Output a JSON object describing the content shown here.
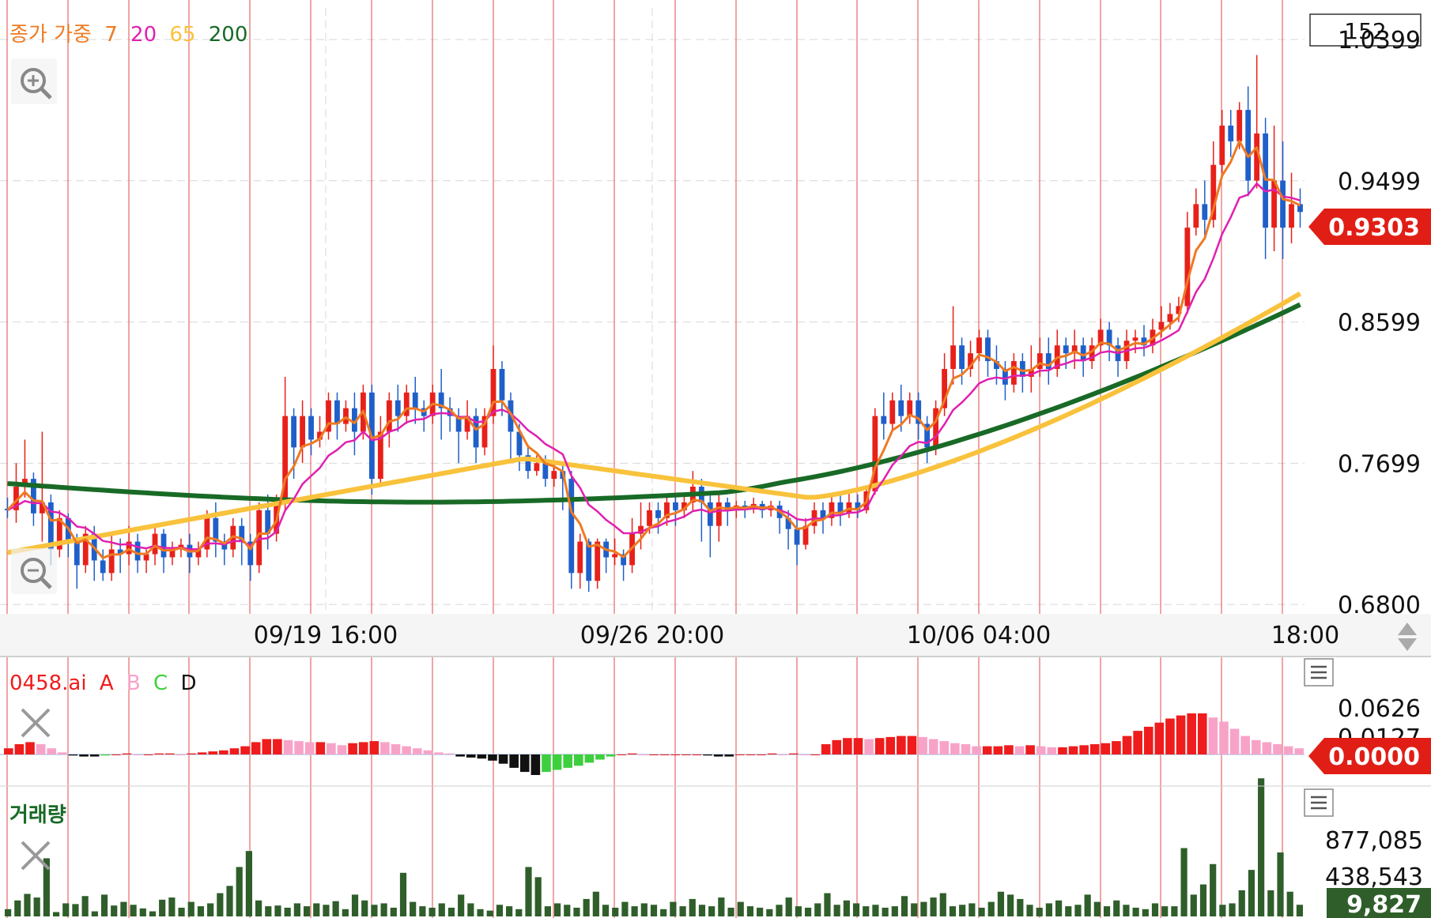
{
  "colors": {
    "up": "#e8201a",
    "down": "#1f5fc9",
    "ma7": "#ee7a22",
    "ma20": "#e020b0",
    "ma65": "#f9c23c",
    "ma200": "#186a26",
    "price_badge": "#e01e16",
    "volume_badge": "#2f5e2a",
    "period_line": "#e25050",
    "grid": "#d7d7d7",
    "vol_bar": "#2f5e2a",
    "osc_a": "#ee1c1c",
    "osc_b": "#f7a3c8",
    "osc_c": "#3ecf3e",
    "osc_d": "#111111"
  },
  "main_panel": {
    "legend": {
      "prefix": "종가 가중",
      "p7": "7",
      "p20": "20",
      "p65": "65",
      "p200": "200"
    },
    "count_box": "152",
    "current_price": "0.9303",
    "zoom_in_icon": "zoom-in-icon",
    "zoom_out_icon": "zoom-out-icon"
  },
  "time_axis": {
    "labels": [
      "09/19 16:00",
      "09/26 20:00",
      "10/06 04:00",
      "18:00"
    ]
  },
  "oscillator_panel": {
    "name": "0458.ai",
    "legend": [
      "A",
      "B",
      "C",
      "D"
    ],
    "ticks": [
      "0.0626",
      "0.0127"
    ],
    "current": "0.0000",
    "menu_icon": "menu-icon",
    "close_icon": "close-icon"
  },
  "volume_panel": {
    "title": "거래량",
    "ticks": [
      "877,085",
      "438,543"
    ],
    "current": "9,827",
    "menu_icon": "menu-icon",
    "close_icon": "close-icon"
  },
  "chart_data": {
    "type": "candlestick",
    "y_axis": {
      "ticks": [
        1.0399,
        0.9499,
        0.8599,
        0.7699,
        0.68
      ],
      "range": [
        0.675,
        1.06
      ]
    },
    "x_axis": {
      "labels": [
        "09/19 16:00",
        "09/26 20:00",
        "10/06 04:00",
        "18:00"
      ]
    },
    "candles": [
      [
        0.741,
        0.74,
        0.735,
        0.748
      ],
      [
        0.74,
        0.755,
        0.732,
        0.77
      ],
      [
        0.755,
        0.76,
        0.748,
        0.785
      ],
      [
        0.76,
        0.738,
        0.73,
        0.764
      ],
      [
        0.738,
        0.745,
        0.72,
        0.79
      ],
      [
        0.745,
        0.715,
        0.705,
        0.75
      ],
      [
        0.715,
        0.735,
        0.71,
        0.74
      ],
      [
        0.735,
        0.72,
        0.71,
        0.738
      ],
      [
        0.72,
        0.705,
        0.69,
        0.725
      ],
      [
        0.705,
        0.725,
        0.7,
        0.73
      ],
      [
        0.725,
        0.708,
        0.695,
        0.73
      ],
      [
        0.708,
        0.7,
        0.695,
        0.715
      ],
      [
        0.7,
        0.715,
        0.695,
        0.725
      ],
      [
        0.715,
        0.712,
        0.7,
        0.722
      ],
      [
        0.712,
        0.72,
        0.705,
        0.73
      ],
      [
        0.72,
        0.708,
        0.7,
        0.725
      ],
      [
        0.708,
        0.712,
        0.7,
        0.715
      ],
      [
        0.712,
        0.725,
        0.705,
        0.73
      ],
      [
        0.725,
        0.71,
        0.7,
        0.728
      ],
      [
        0.71,
        0.715,
        0.705,
        0.72
      ],
      [
        0.715,
        0.718,
        0.71,
        0.722
      ],
      [
        0.718,
        0.71,
        0.7,
        0.725
      ],
      [
        0.71,
        0.715,
        0.705,
        0.72
      ],
      [
        0.715,
        0.735,
        0.71,
        0.74
      ],
      [
        0.735,
        0.72,
        0.71,
        0.745
      ],
      [
        0.72,
        0.715,
        0.705,
        0.725
      ],
      [
        0.715,
        0.73,
        0.71,
        0.735
      ],
      [
        0.73,
        0.72,
        0.705,
        0.735
      ],
      [
        0.72,
        0.705,
        0.695,
        0.725
      ],
      [
        0.705,
        0.74,
        0.7,
        0.745
      ],
      [
        0.74,
        0.725,
        0.715,
        0.75
      ],
      [
        0.725,
        0.745,
        0.72,
        0.75
      ],
      [
        0.745,
        0.8,
        0.74,
        0.825
      ],
      [
        0.8,
        0.78,
        0.76,
        0.805
      ],
      [
        0.78,
        0.8,
        0.77,
        0.81
      ],
      [
        0.8,
        0.785,
        0.775,
        0.805
      ],
      [
        0.785,
        0.79,
        0.78,
        0.8
      ],
      [
        0.79,
        0.81,
        0.785,
        0.815
      ],
      [
        0.81,
        0.795,
        0.785,
        0.815
      ],
      [
        0.795,
        0.805,
        0.79,
        0.81
      ],
      [
        0.805,
        0.79,
        0.775,
        0.815
      ],
      [
        0.79,
        0.815,
        0.785,
        0.82
      ],
      [
        0.815,
        0.76,
        0.75,
        0.82
      ],
      [
        0.76,
        0.79,
        0.755,
        0.8
      ],
      [
        0.79,
        0.81,
        0.78,
        0.815
      ],
      [
        0.81,
        0.8,
        0.79,
        0.82
      ],
      [
        0.8,
        0.815,
        0.795,
        0.82
      ],
      [
        0.815,
        0.805,
        0.795,
        0.825
      ],
      [
        0.805,
        0.8,
        0.79,
        0.81
      ],
      [
        0.8,
        0.815,
        0.795,
        0.82
      ],
      [
        0.815,
        0.805,
        0.785,
        0.83
      ],
      [
        0.805,
        0.8,
        0.79,
        0.812
      ],
      [
        0.8,
        0.79,
        0.77,
        0.805
      ],
      [
        0.79,
        0.8,
        0.785,
        0.81
      ],
      [
        0.8,
        0.78,
        0.77,
        0.805
      ],
      [
        0.78,
        0.8,
        0.775,
        0.805
      ],
      [
        0.8,
        0.83,
        0.795,
        0.845
      ],
      [
        0.83,
        0.81,
        0.8,
        0.835
      ],
      [
        0.81,
        0.79,
        0.77,
        0.815
      ],
      [
        0.79,
        0.775,
        0.765,
        0.795
      ],
      [
        0.775,
        0.765,
        0.76,
        0.78
      ],
      [
        0.765,
        0.77,
        0.762,
        0.775
      ],
      [
        0.77,
        0.76,
        0.755,
        0.775
      ],
      [
        0.76,
        0.765,
        0.755,
        0.77
      ],
      [
        0.765,
        0.76,
        0.74,
        0.77
      ],
      [
        0.76,
        0.7,
        0.69,
        0.765
      ],
      [
        0.7,
        0.72,
        0.69,
        0.725
      ],
      [
        0.72,
        0.695,
        0.688,
        0.722
      ],
      [
        0.695,
        0.72,
        0.69,
        0.722
      ],
      [
        0.72,
        0.71,
        0.7,
        0.722
      ],
      [
        0.71,
        0.712,
        0.705,
        0.722
      ],
      [
        0.712,
        0.705,
        0.695,
        0.715
      ],
      [
        0.705,
        0.725,
        0.7,
        0.735
      ],
      [
        0.725,
        0.73,
        0.715,
        0.745
      ],
      [
        0.73,
        0.74,
        0.725,
        0.745
      ],
      [
        0.74,
        0.735,
        0.725,
        0.745
      ],
      [
        0.735,
        0.745,
        0.73,
        0.748
      ],
      [
        0.745,
        0.74,
        0.73,
        0.75
      ],
      [
        0.74,
        0.745,
        0.735,
        0.75
      ],
      [
        0.745,
        0.755,
        0.74,
        0.765
      ],
      [
        0.755,
        0.745,
        0.72,
        0.76
      ],
      [
        0.745,
        0.73,
        0.71,
        0.75
      ],
      [
        0.73,
        0.745,
        0.72,
        0.75
      ],
      [
        0.745,
        0.74,
        0.73,
        0.748
      ],
      [
        0.74,
        0.743,
        0.735,
        0.746
      ],
      [
        0.743,
        0.741,
        0.735,
        0.746
      ],
      [
        0.741,
        0.744,
        0.738,
        0.748
      ],
      [
        0.744,
        0.74,
        0.735,
        0.746
      ],
      [
        0.74,
        0.743,
        0.736,
        0.746
      ],
      [
        0.743,
        0.735,
        0.725,
        0.746
      ],
      [
        0.735,
        0.728,
        0.715,
        0.74
      ],
      [
        0.728,
        0.718,
        0.705,
        0.735
      ],
      [
        0.718,
        0.73,
        0.715,
        0.735
      ],
      [
        0.73,
        0.74,
        0.725,
        0.745
      ],
      [
        0.74,
        0.735,
        0.725,
        0.745
      ],
      [
        0.735,
        0.745,
        0.73,
        0.75
      ],
      [
        0.745,
        0.738,
        0.73,
        0.75
      ],
      [
        0.738,
        0.745,
        0.735,
        0.752
      ],
      [
        0.745,
        0.74,
        0.735,
        0.75
      ],
      [
        0.74,
        0.752,
        0.738,
        0.755
      ],
      [
        0.752,
        0.8,
        0.75,
        0.805
      ],
      [
        0.8,
        0.795,
        0.785,
        0.815
      ],
      [
        0.795,
        0.81,
        0.79,
        0.815
      ],
      [
        0.81,
        0.8,
        0.79,
        0.82
      ],
      [
        0.8,
        0.81,
        0.795,
        0.815
      ],
      [
        0.81,
        0.795,
        0.785,
        0.815
      ],
      [
        0.795,
        0.78,
        0.77,
        0.8
      ],
      [
        0.78,
        0.805,
        0.775,
        0.81
      ],
      [
        0.805,
        0.83,
        0.8,
        0.84
      ],
      [
        0.83,
        0.845,
        0.82,
        0.87
      ],
      [
        0.845,
        0.83,
        0.82,
        0.85
      ],
      [
        0.83,
        0.84,
        0.825,
        0.848
      ],
      [
        0.84,
        0.85,
        0.835,
        0.855
      ],
      [
        0.85,
        0.835,
        0.825,
        0.855
      ],
      [
        0.835,
        0.83,
        0.82,
        0.845
      ],
      [
        0.83,
        0.82,
        0.81,
        0.835
      ],
      [
        0.82,
        0.835,
        0.815,
        0.84
      ],
      [
        0.835,
        0.825,
        0.815,
        0.84
      ],
      [
        0.825,
        0.83,
        0.815,
        0.845
      ],
      [
        0.83,
        0.84,
        0.825,
        0.85
      ],
      [
        0.84,
        0.83,
        0.82,
        0.85
      ],
      [
        0.83,
        0.845,
        0.825,
        0.855
      ],
      [
        0.845,
        0.84,
        0.83,
        0.85
      ],
      [
        0.84,
        0.845,
        0.83,
        0.855
      ],
      [
        0.845,
        0.835,
        0.825,
        0.85
      ],
      [
        0.835,
        0.845,
        0.83,
        0.85
      ],
      [
        0.845,
        0.855,
        0.84,
        0.862
      ],
      [
        0.855,
        0.845,
        0.835,
        0.86
      ],
      [
        0.845,
        0.835,
        0.825,
        0.85
      ],
      [
        0.835,
        0.848,
        0.83,
        0.855
      ],
      [
        0.848,
        0.85,
        0.84,
        0.855
      ],
      [
        0.85,
        0.845,
        0.838,
        0.858
      ],
      [
        0.845,
        0.855,
        0.84,
        0.862
      ],
      [
        0.855,
        0.86,
        0.85,
        0.87
      ],
      [
        0.86,
        0.865,
        0.855,
        0.872
      ],
      [
        0.865,
        0.87,
        0.86,
        0.876
      ],
      [
        0.87,
        0.92,
        0.865,
        0.93
      ],
      [
        0.92,
        0.935,
        0.915,
        0.945
      ],
      [
        0.935,
        0.925,
        0.915,
        0.95
      ],
      [
        0.925,
        0.96,
        0.92,
        0.975
      ],
      [
        0.96,
        0.985,
        0.955,
        0.995
      ],
      [
        0.985,
        0.975,
        0.965,
        0.995
      ],
      [
        0.975,
        0.995,
        0.97,
        1.0
      ],
      [
        0.995,
        0.95,
        0.94,
        1.01
      ],
      [
        0.95,
        0.98,
        0.945,
        1.03
      ],
      [
        0.98,
        0.92,
        0.9,
        0.99
      ],
      [
        0.92,
        0.95,
        0.905,
        0.985
      ],
      [
        0.95,
        0.92,
        0.9,
        0.975
      ],
      [
        0.92,
        0.935,
        0.91,
        0.955
      ],
      [
        0.935,
        0.93,
        0.92,
        0.945
      ]
    ],
    "ma_periods": [
      7,
      20,
      65,
      200
    ],
    "oscillator": [
      0.006,
      0.01,
      0.012,
      0.01,
      0.006,
      0.002,
      -0.001,
      -0.002,
      -0.002,
      -0.001,
      0.0,
      0.001,
      0.0,
      0.0,
      0.001,
      0.001,
      0.0,
      0.001,
      0.002,
      0.003,
      0.004,
      0.006,
      0.008,
      0.012,
      0.015,
      0.015,
      0.014,
      0.013,
      0.012,
      0.012,
      0.011,
      0.009,
      0.011,
      0.012,
      0.013,
      0.012,
      0.01,
      0.008,
      0.006,
      0.004,
      0.002,
      0.001,
      -0.002,
      -0.003,
      -0.004,
      -0.006,
      -0.009,
      -0.013,
      -0.017,
      -0.02,
      -0.017,
      -0.015,
      -0.013,
      -0.011,
      -0.008,
      -0.005,
      -0.002,
      0.0,
      0.001,
      0.0,
      0.0,
      0.0,
      0.0,
      0.0,
      0.0,
      -0.001,
      -0.002,
      -0.002,
      0.0,
      0.0,
      0.0,
      0.001,
      0.0,
      0.001,
      0.0,
      0.0,
      0.01,
      0.014,
      0.016,
      0.016,
      0.015,
      0.016,
      0.017,
      0.018,
      0.018,
      0.017,
      0.015,
      0.013,
      0.011,
      0.01,
      0.008,
      0.008,
      0.008,
      0.009,
      0.008,
      0.009,
      0.008,
      0.007,
      0.007,
      0.008,
      0.009,
      0.01,
      0.011,
      0.013,
      0.018,
      0.023,
      0.027,
      0.031,
      0.035,
      0.038,
      0.04,
      0.04,
      0.036,
      0.032,
      0.025,
      0.018,
      0.014,
      0.012,
      0.01,
      0.008,
      0.006
    ],
    "volume": [
      10,
      22,
      31,
      26,
      80,
      6,
      18,
      17,
      28,
      7,
      30,
      15,
      20,
      16,
      11,
      7,
      23,
      26,
      12,
      20,
      14,
      18,
      32,
      42,
      68,
      90,
      22,
      14,
      15,
      12,
      18,
      14,
      18,
      16,
      21,
      10,
      30,
      22,
      16,
      18,
      12,
      60,
      20,
      14,
      12,
      18,
      12,
      30,
      18,
      10,
      8,
      16,
      14,
      10,
      68,
      54,
      14,
      18,
      16,
      12,
      24,
      34,
      16,
      12,
      20,
      14,
      18,
      16,
      10,
      20,
      14,
      24,
      16,
      14,
      26,
      12,
      20,
      14,
      12,
      10,
      16,
      26,
      14,
      12,
      18,
      32,
      16,
      22,
      18,
      14,
      16,
      12,
      14,
      28,
      18,
      20,
      26,
      32,
      14,
      16,
      18,
      12,
      20,
      34,
      30,
      24,
      16,
      12,
      18,
      22,
      14,
      16,
      30,
      20,
      14,
      22,
      16,
      12,
      10,
      18,
      14,
      14,
      94,
      30,
      44,
      72,
      16,
      18,
      36,
      64,
      190,
      36,
      88,
      34,
      16
    ]
  }
}
